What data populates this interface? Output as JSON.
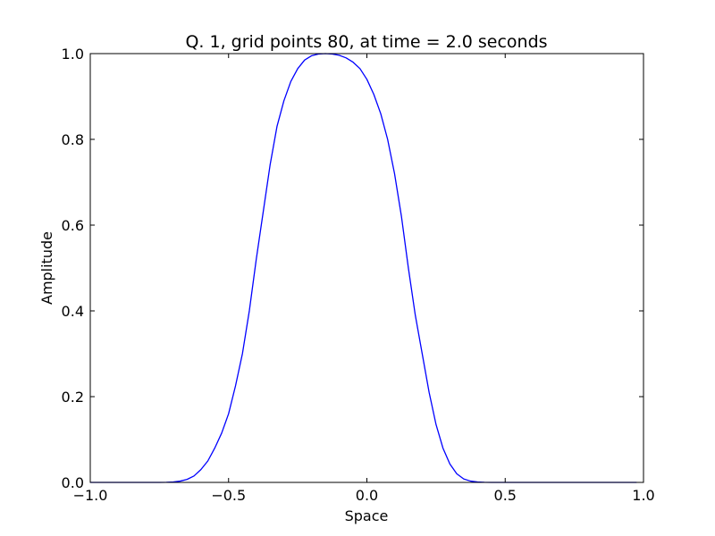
{
  "chart_data": {
    "type": "line",
    "title": "Q. 1, grid points 80, at time = 2.0 seconds",
    "xlabel": "Space",
    "ylabel": "Amplitude",
    "xlim": [
      -1.0,
      1.0
    ],
    "ylim": [
      0.0,
      1.0
    ],
    "xticks": [
      -1.0,
      -0.5,
      0.0,
      0.5,
      1.0
    ],
    "xtick_labels": [
      "−1.0",
      "−0.5",
      "0.0",
      "0.5",
      "1.0"
    ],
    "yticks": [
      0.0,
      0.2,
      0.4,
      0.6,
      0.8,
      1.0
    ],
    "ytick_labels": [
      "0.0",
      "0.2",
      "0.4",
      "0.6",
      "0.8",
      "1.0"
    ],
    "grid": false,
    "line_color": "#0000ff",
    "series": [
      {
        "x": [
          -1.0,
          -0.975,
          -0.95,
          -0.925,
          -0.9,
          -0.875,
          -0.85,
          -0.825,
          -0.8,
          -0.775,
          -0.75,
          -0.725,
          -0.7,
          -0.675,
          -0.65,
          -0.625,
          -0.6,
          -0.575,
          -0.55,
          -0.525,
          -0.5,
          -0.475,
          -0.45,
          -0.425,
          -0.4,
          -0.375,
          -0.35,
          -0.325,
          -0.3,
          -0.275,
          -0.25,
          -0.225,
          -0.2,
          -0.175,
          -0.15,
          -0.125,
          -0.1,
          -0.075,
          -0.05,
          -0.025,
          0.0,
          0.025,
          0.05,
          0.075,
          0.1,
          0.125,
          0.15,
          0.175,
          0.2,
          0.225,
          0.25,
          0.275,
          0.3,
          0.325,
          0.35,
          0.375,
          0.4,
          0.425,
          0.45,
          0.475,
          0.5,
          0.525,
          0.55,
          0.575,
          0.6,
          0.625,
          0.65,
          0.675,
          0.7,
          0.725,
          0.75,
          0.775,
          0.8,
          0.825,
          0.85,
          0.875,
          0.9,
          0.925,
          0.95,
          0.975
        ],
        "y": [
          0.0,
          0.0,
          0.0,
          0.0,
          0.0,
          0.0,
          0.0,
          0.0,
          0.0,
          0.0,
          0.0,
          0.0003,
          0.001,
          0.003,
          0.007,
          0.015,
          0.03,
          0.05,
          0.08,
          0.115,
          0.16,
          0.225,
          0.3,
          0.4,
          0.52,
          0.63,
          0.74,
          0.83,
          0.89,
          0.935,
          0.965,
          0.985,
          0.995,
          0.999,
          1.0,
          0.999,
          0.996,
          0.99,
          0.98,
          0.965,
          0.94,
          0.905,
          0.86,
          0.8,
          0.72,
          0.62,
          0.5,
          0.39,
          0.3,
          0.21,
          0.135,
          0.08,
          0.043,
          0.02,
          0.008,
          0.003,
          0.001,
          0.0003,
          0.0,
          0.0,
          0.0,
          0.0,
          0.0,
          0.0,
          0.0,
          0.0,
          0.0,
          0.0,
          0.0,
          0.0,
          0.0,
          0.0,
          0.0,
          0.0,
          0.0,
          0.0,
          0.0,
          0.0,
          0.0,
          0.0
        ]
      }
    ]
  }
}
